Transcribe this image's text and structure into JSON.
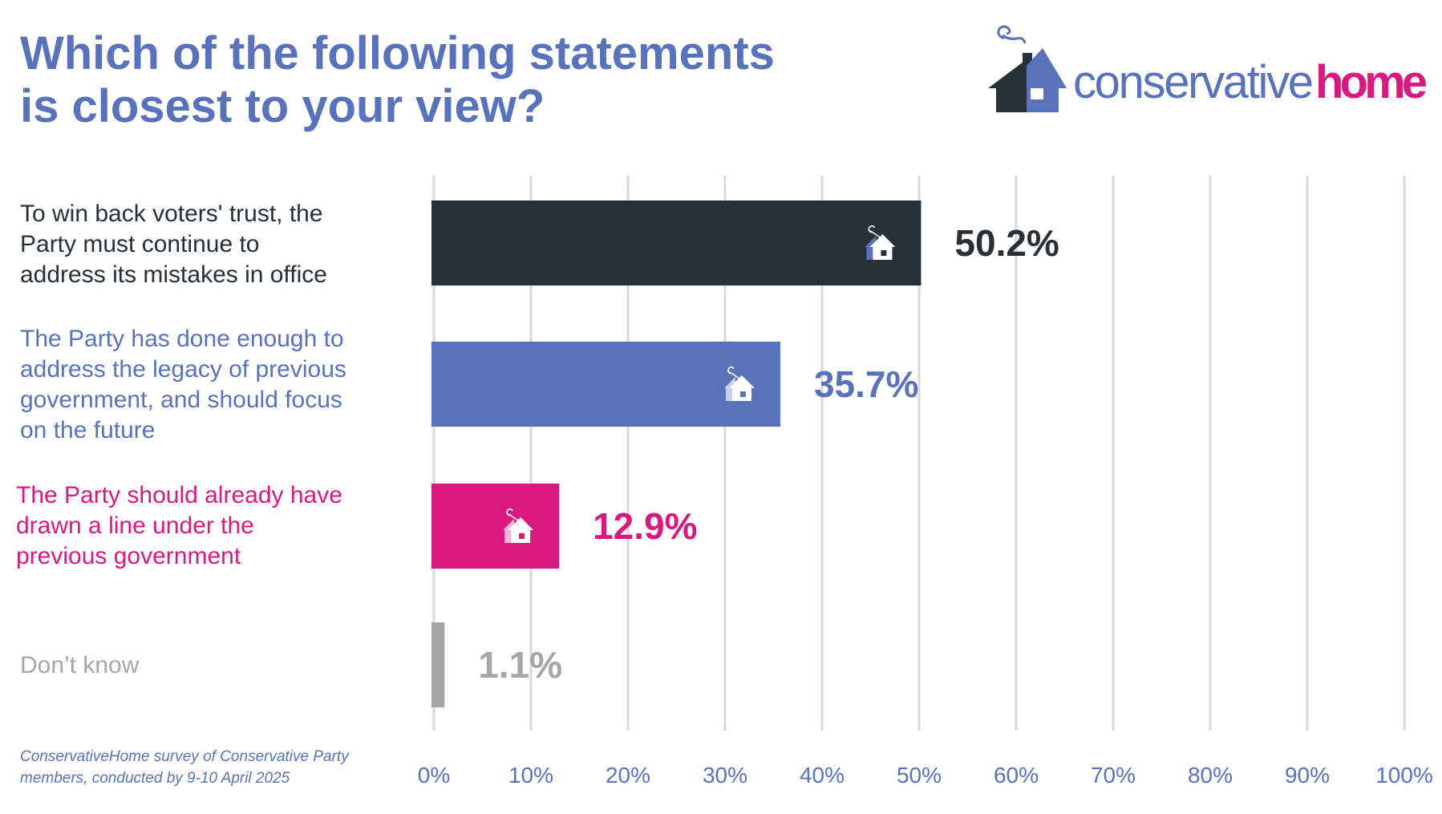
{
  "title": [
    "Which of the following statements",
    "is closest to your view?"
  ],
  "logo": {
    "text_primary": "conservative",
    "text_secondary": "home"
  },
  "footnote": [
    "ConservativeHome survey of Conservative Party",
    "members, conducted by 9-10 April 2025"
  ],
  "chart_data": {
    "type": "bar",
    "orientation": "horizontal",
    "title": "Which of the following statements is closest to your view?",
    "categories": [
      [
        "To win back voters' trust, the",
        "Party must continue to",
        "address its mistakes in office"
      ],
      [
        "The Party has done enough to",
        "address the legacy of previous",
        "government, and should focus",
        "on the future"
      ],
      [
        "The Party should already have",
        "drawn a line under the",
        "previous government"
      ],
      [
        "Don’t know"
      ]
    ],
    "values": [
      50.2,
      35.7,
      12.9,
      1.1
    ],
    "value_labels": [
      "50.2%",
      "35.7%",
      "12.9%",
      "1.1%"
    ],
    "colors": [
      "#263038",
      "#5872bb",
      "#d9197f",
      "#a6a6a6"
    ],
    "xlim": [
      0,
      100
    ],
    "xticks": [
      0,
      10,
      20,
      30,
      40,
      50,
      60,
      70,
      80,
      90,
      100
    ],
    "xtick_labels": [
      "0%",
      "10%",
      "20%",
      "30%",
      "40%",
      "50%",
      "60%",
      "70%",
      "80%",
      "90%",
      "100%"
    ],
    "grid": true,
    "xlabel": "",
    "ylabel": ""
  }
}
